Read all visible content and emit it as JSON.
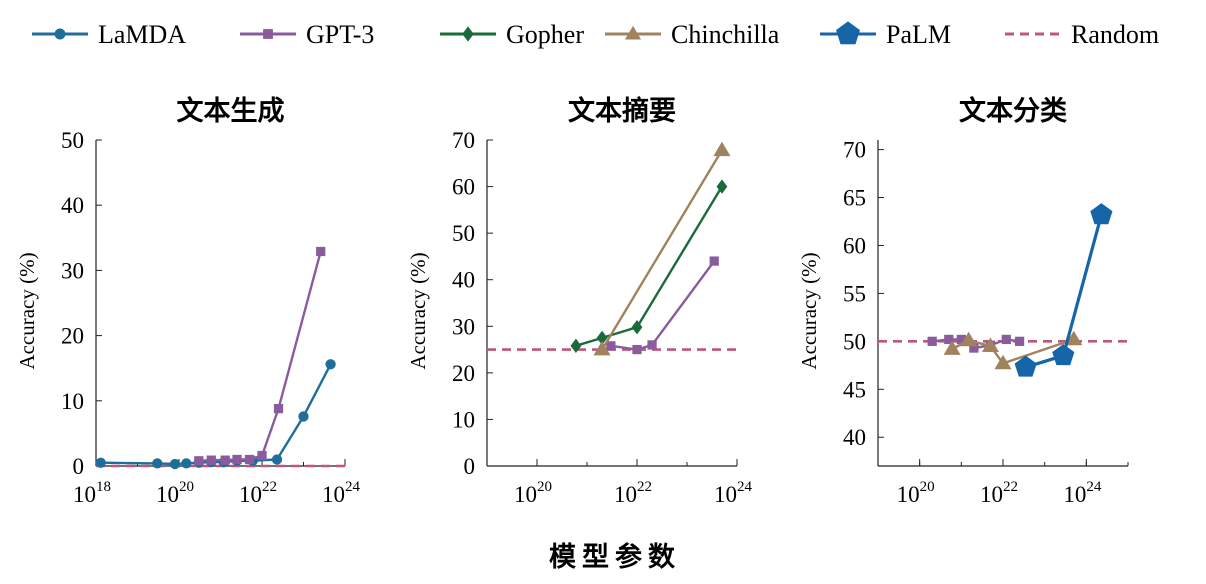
{
  "xlabel": "模型参数",
  "legend": [
    {
      "name": "LaMDA",
      "color": "#1f6e99",
      "marker": "circle",
      "dashed": false
    },
    {
      "name": "GPT-3",
      "color": "#8a5c9e",
      "marker": "square",
      "dashed": false
    },
    {
      "name": "Gopher",
      "color": "#1b6b3a",
      "marker": "diamond",
      "dashed": false
    },
    {
      "name": "Chinchilla",
      "color": "#a0825e",
      "marker": "triangle",
      "dashed": false
    },
    {
      "name": "PaLM",
      "color": "#1565a8",
      "marker": "pentagon",
      "dashed": false
    },
    {
      "name": "Random",
      "color": "#c0567e",
      "marker": "none",
      "dashed": true
    }
  ],
  "chart_data": [
    {
      "type": "line",
      "title": "文本生成",
      "ylabel": "Accuracy (%)",
      "xscale": "log",
      "xlim": [
        1e+18,
        1e+24
      ],
      "ylim": [
        0,
        50
      ],
      "xticks": [
        {
          "exp": 18,
          "label": "10"
        },
        {
          "exp": 20,
          "label": "10"
        },
        {
          "exp": 22,
          "label": "10"
        },
        {
          "exp": 24,
          "label": "10"
        }
      ],
      "yticks": [
        0,
        10,
        20,
        30,
        40,
        50
      ],
      "random": 0,
      "series": [
        {
          "name": "LaMDA",
          "x": [
            1.3e+18,
            3e+19,
            8e+19,
            1.5e+20,
            3e+20,
            6e+20,
            1.2e+21,
            2.5e+21,
            6e+21,
            2.3e+22,
            1e+23,
            4.5e+23
          ],
          "y": [
            0.5,
            0.4,
            0.3,
            0.4,
            0.5,
            0.6,
            0.6,
            0.8,
            0.8,
            1.0,
            7.6,
            15.6
          ]
        },
        {
          "name": "GPT-3",
          "x": [
            3e+20,
            6e+20,
            1.3e+21,
            2.5e+21,
            5e+21,
            1e+22,
            2.5e+22,
            2.6e+23
          ],
          "y": [
            0.8,
            0.9,
            0.9,
            1.0,
            1.0,
            1.6,
            8.8,
            32.9
          ]
        }
      ]
    },
    {
      "type": "line",
      "title": "文本摘要",
      "ylabel": "Accuracy (%)",
      "xscale": "log",
      "xlim": [
        1e+19,
        1e+24
      ],
      "ylim": [
        0,
        70
      ],
      "xticks": [
        {
          "exp": 20,
          "label": "10"
        },
        {
          "exp": 22,
          "label": "10"
        },
        {
          "exp": 24,
          "label": "10"
        }
      ],
      "yticks": [
        0,
        10,
        20,
        30,
        40,
        50,
        60,
        70
      ],
      "random": 25,
      "series": [
        {
          "name": "GPT-3",
          "x": [
            3e+21,
            1e+22,
            2e+22,
            3.5e+23
          ],
          "y": [
            25.8,
            25.0,
            26.0,
            44.0
          ]
        },
        {
          "name": "Gopher",
          "x": [
            6e+20,
            2e+21,
            1e+22,
            5e+23
          ],
          "y": [
            25.8,
            27.5,
            29.8,
            60.0
          ]
        },
        {
          "name": "Chinchilla",
          "x": [
            2e+21,
            5e+23
          ],
          "y": [
            25.0,
            67.8
          ]
        }
      ]
    },
    {
      "type": "line",
      "title": "文本分类",
      "ylabel": "Accuracy (%)",
      "xscale": "log",
      "xlim": [
        1e+19,
        1e+25
      ],
      "ylim": [
        37,
        71
      ],
      "xticks": [
        {
          "exp": 20,
          "label": "10"
        },
        {
          "exp": 22,
          "label": "10"
        },
        {
          "exp": 24,
          "label": "10"
        }
      ],
      "yticks": [
        40,
        45,
        50,
        55,
        60,
        65,
        70
      ],
      "random": 50,
      "series": [
        {
          "name": "GPT-3",
          "x": [
            2e+20,
            5e+20,
            1e+21,
            2e+21,
            5e+21,
            1.2e+22,
            2.5e+22
          ],
          "y": [
            50.0,
            50.2,
            50.2,
            49.3,
            49.6,
            50.2,
            50.0
          ]
        },
        {
          "name": "Chinchilla",
          "x": [
            6e+20,
            1.5e+21,
            5e+21,
            1e+22,
            5e+23
          ],
          "y": [
            49.2,
            50.1,
            49.5,
            47.7,
            50.2
          ]
        },
        {
          "name": "PaLM",
          "x": [
            3.5e+22,
            2.8e+23,
            2.3e+24
          ],
          "y": [
            47.3,
            48.5,
            63.2
          ]
        }
      ]
    }
  ]
}
